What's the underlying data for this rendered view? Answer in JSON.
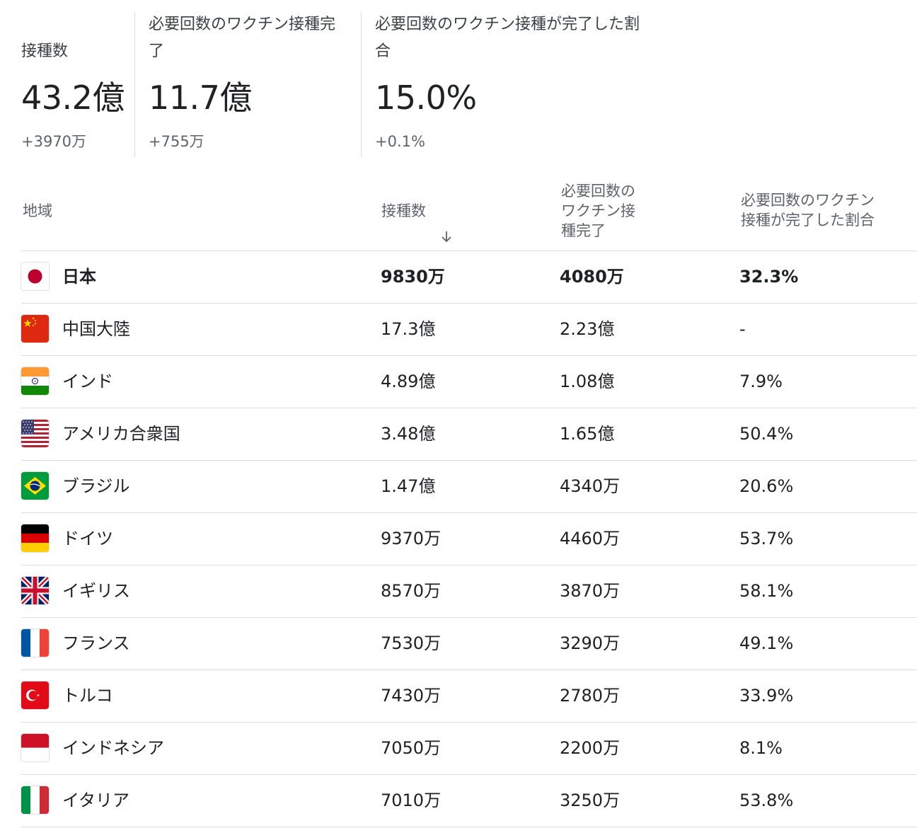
{
  "summary": [
    {
      "label": "接種数",
      "value": "43.2億",
      "change": "+3970万"
    },
    {
      "label_line1": "必要回数のワクチン接種完",
      "label_line2": "了",
      "value": "11.7億",
      "change": "+755万"
    },
    {
      "label_line1": "必要回数のワクチン接種が完了した割",
      "label_line2": "合",
      "value": "15.0%",
      "change": "+0.1%"
    }
  ],
  "table": {
    "headers": {
      "region": "地域",
      "doses": "接種数",
      "full_line1": "必要回数の",
      "full_line2": "ワクチン接",
      "full_line3": "種完了",
      "pct_line1": "必要回数のワクチン",
      "pct_line2": "接種が完了した割合"
    },
    "sort_icon": "arrow-down-icon",
    "rows": [
      {
        "flag": "japan-flag-icon",
        "region": "日本",
        "doses": "9830万",
        "full": "4080万",
        "pct": "32.3%"
      },
      {
        "flag": "china-flag-icon",
        "region": "中国大陸",
        "doses": "17.3億",
        "full": "2.23億",
        "pct": "-"
      },
      {
        "flag": "india-flag-icon",
        "region": "インド",
        "doses": "4.89億",
        "full": "1.08億",
        "pct": "7.9%"
      },
      {
        "flag": "usa-flag-icon",
        "region": "アメリカ合衆国",
        "doses": "3.48億",
        "full": "1.65億",
        "pct": "50.4%"
      },
      {
        "flag": "brazil-flag-icon",
        "region": "ブラジル",
        "doses": "1.47億",
        "full": "4340万",
        "pct": "20.6%"
      },
      {
        "flag": "germany-flag-icon",
        "region": "ドイツ",
        "doses": "9370万",
        "full": "4460万",
        "pct": "53.7%"
      },
      {
        "flag": "uk-flag-icon",
        "region": "イギリス",
        "doses": "8570万",
        "full": "3870万",
        "pct": "58.1%"
      },
      {
        "flag": "france-flag-icon",
        "region": "フランス",
        "doses": "7530万",
        "full": "3290万",
        "pct": "49.1%"
      },
      {
        "flag": "turkey-flag-icon",
        "region": "トルコ",
        "doses": "7430万",
        "full": "2780万",
        "pct": "33.9%"
      },
      {
        "flag": "indonesia-flag-icon",
        "region": "インドネシア",
        "doses": "7050万",
        "full": "2200万",
        "pct": "8.1%"
      },
      {
        "flag": "italy-flag-icon",
        "region": "イタリア",
        "doses": "7010万",
        "full": "3250万",
        "pct": "53.8%"
      }
    ]
  },
  "colors": {
    "text": "#202124",
    "muted": "#5f6368",
    "divider": "#dadce0"
  }
}
